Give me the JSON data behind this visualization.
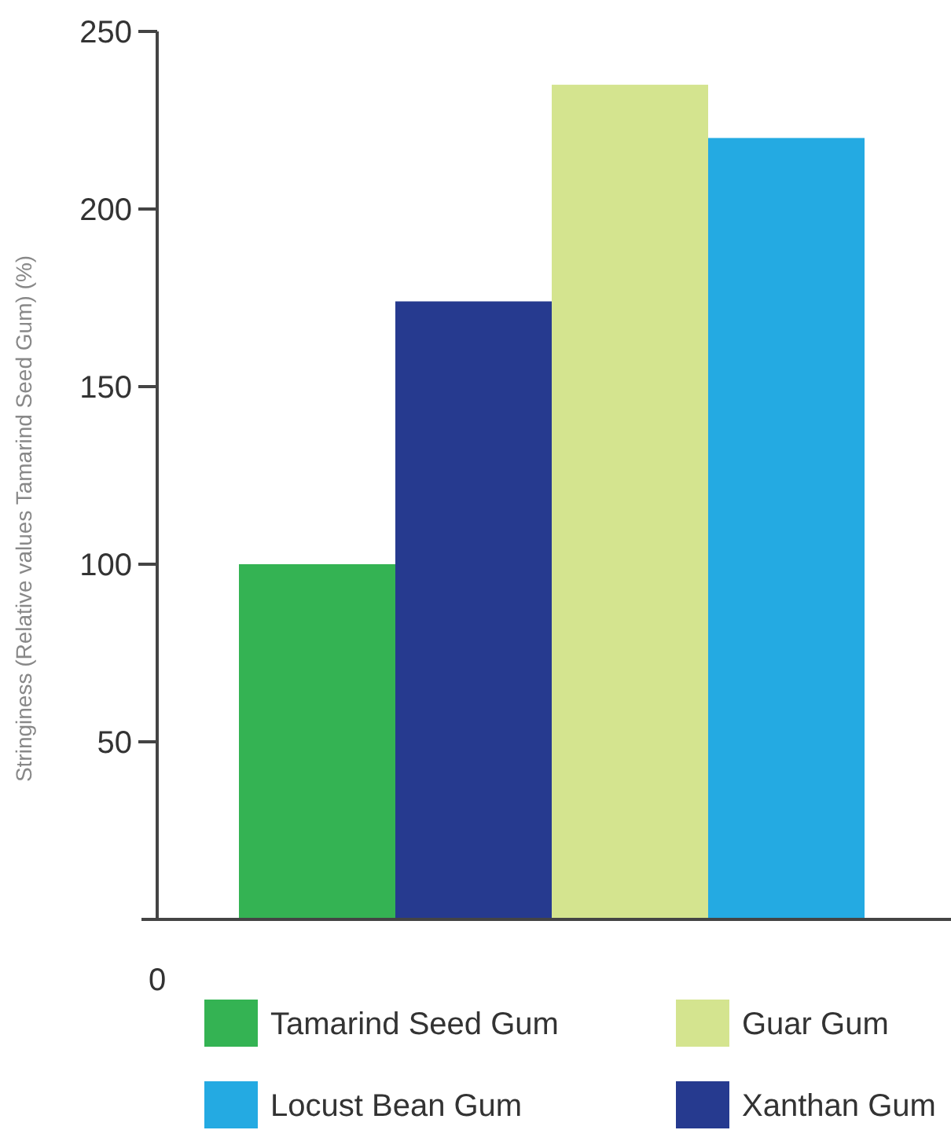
{
  "chart_data": {
    "type": "bar",
    "ylabel": "Stringiness (Relative values Tamarind Seed Gum) (%)",
    "categories": [
      null,
      null,
      null,
      null
    ],
    "ylim": [
      0,
      250
    ],
    "yticks": [
      50,
      100,
      150,
      200,
      250
    ],
    "annotations": [
      "0"
    ],
    "legend": "bottom",
    "series": [
      {
        "name": "Tamarind Seed Gum",
        "color": "#34b353",
        "values": [
          100,
          null,
          null,
          null
        ]
      },
      {
        "name": "Guar Gum",
        "color": "#d4e48f",
        "values": [
          null,
          null,
          235,
          null
        ]
      },
      {
        "name": "Locust Bean Gum",
        "color": "#24aae2",
        "values": [
          null,
          null,
          null,
          220
        ]
      },
      {
        "name": "Xanthan Gum",
        "color": "#263a8f",
        "values": [
          null,
          174,
          null,
          null
        ]
      }
    ]
  }
}
